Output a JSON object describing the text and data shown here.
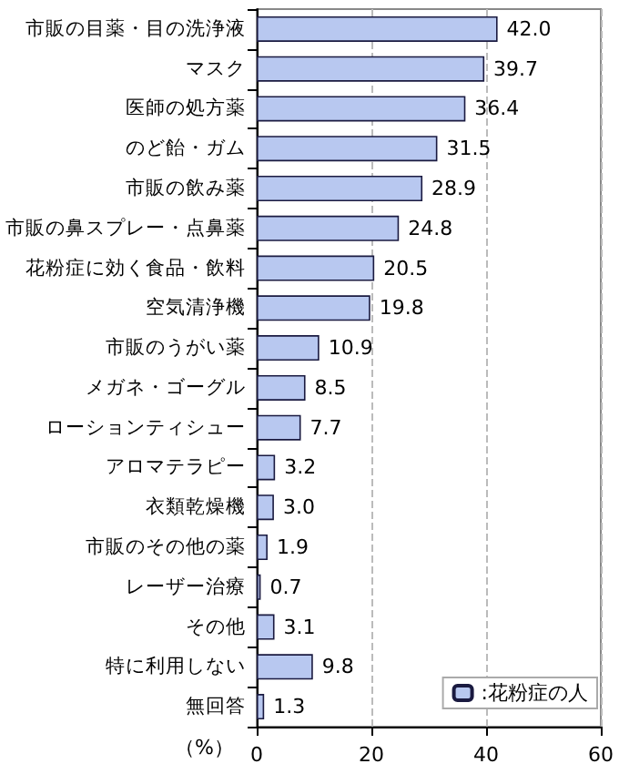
{
  "chart_data": {
    "type": "bar",
    "orientation": "horizontal",
    "categories": [
      "市販の目薬・目の洗浄液",
      "マスク",
      "医師の処方薬",
      "のど飴・ガム",
      "市販の飲み薬",
      "市販の鼻スプレー・点鼻薬",
      "花粉症に効く食品・飲料",
      "空気清浄機",
      "市販のうがい薬",
      "メガネ・ゴーグル",
      "ローションティシュー",
      "アロマテラピー",
      "衣類乾燥機",
      "市販のその他の薬",
      "レーザー治療",
      "その他",
      "特に利用しない",
      "無回答"
    ],
    "series": [
      {
        "name": ":花粉症の人",
        "color": "#b8c8f0",
        "values": [
          42.0,
          39.7,
          36.4,
          31.5,
          28.9,
          24.8,
          20.5,
          19.8,
          10.9,
          8.5,
          7.7,
          3.2,
          3.0,
          1.9,
          0.7,
          3.1,
          9.8,
          1.3
        ],
        "value_labels": [
          "42.0",
          "39.7",
          "36.4",
          "31.5",
          "28.9",
          "24.8",
          "20.5",
          "19.8",
          "10.9",
          "8.5",
          "7.7",
          "3.2",
          "3.0",
          "1.9",
          "0.7",
          "3.1",
          "9.8",
          "1.3"
        ]
      }
    ],
    "xlabel": "（%）",
    "xlim": [
      0,
      60
    ],
    "xticks": [
      0,
      20,
      40,
      60
    ],
    "grid": "x",
    "legend": "bottom right"
  }
}
